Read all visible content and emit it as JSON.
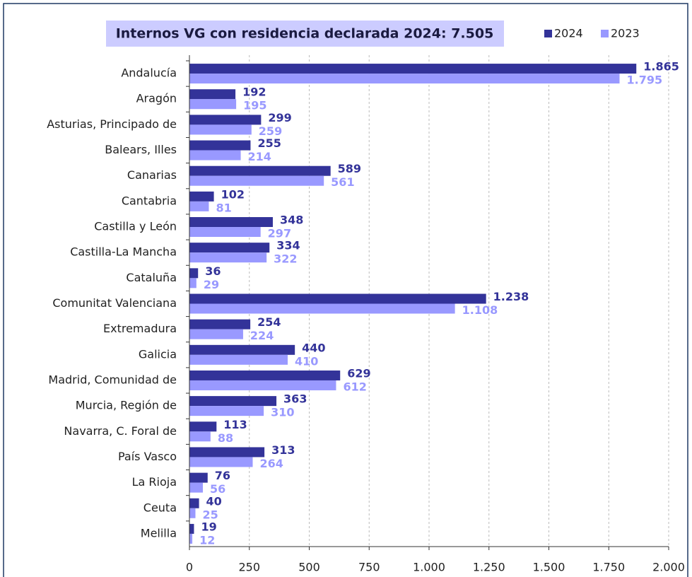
{
  "chart_data": {
    "type": "barh",
    "title": "Internos VG con residencia declarada 2024: 7.505",
    "categories": [
      "Andalucía",
      "Aragón",
      "Asturias, Principado de",
      "Balears, Illes",
      "Canarias",
      "Cantabria",
      "Castilla y León",
      "Castilla-La Mancha",
      "Cataluña",
      "Comunitat Valenciana",
      "Extremadura",
      "Galicia",
      "Madrid, Comunidad de",
      "Murcia, Región de",
      "Navarra, C. Foral de",
      "País Vasco",
      "La Rioja",
      "Ceuta",
      "Melilla"
    ],
    "series": [
      {
        "name": "2024",
        "color": "#333399",
        "values": [
          1865,
          192,
          299,
          255,
          589,
          102,
          348,
          334,
          36,
          1238,
          254,
          440,
          629,
          363,
          113,
          313,
          76,
          40,
          19
        ],
        "value_labels": [
          "1.865",
          "192",
          "299",
          "255",
          "589",
          "102",
          "348",
          "334",
          "36",
          "1.238",
          "254",
          "440",
          "629",
          "363",
          "113",
          "313",
          "76",
          "40",
          "19"
        ]
      },
      {
        "name": "2023",
        "color": "#9999ff",
        "values": [
          1795,
          195,
          259,
          214,
          561,
          81,
          297,
          322,
          29,
          1108,
          224,
          410,
          612,
          310,
          88,
          264,
          56,
          25,
          12
        ],
        "value_labels": [
          "1.795",
          "195",
          "259",
          "214",
          "561",
          "81",
          "297",
          "322",
          "29",
          "1.108",
          "224",
          "410",
          "612",
          "310",
          "88",
          "264",
          "56",
          "25",
          "12"
        ]
      }
    ],
    "xlim": [
      0,
      2000
    ],
    "xticks": [
      0,
      250,
      500,
      750,
      {
        "value": 1000,
        "label": "1.000"
      },
      {
        "value": 1250,
        "label": "1.250"
      },
      {
        "value": 1500,
        "label": "1.500"
      },
      {
        "value": 1750,
        "label": "1.750"
      },
      {
        "value": 2000,
        "label": "2.000"
      }
    ],
    "grid": true,
    "legend": "top-right"
  }
}
